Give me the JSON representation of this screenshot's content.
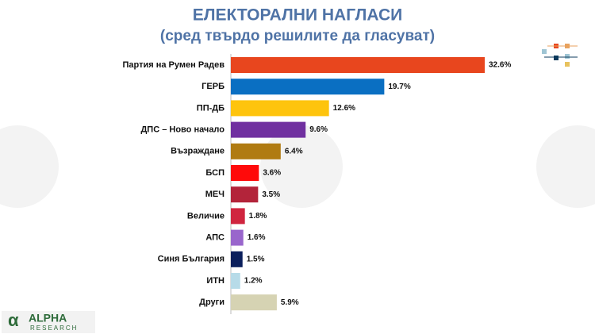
{
  "chart_data": {
    "type": "bar",
    "orientation": "horizontal",
    "title": "ЕЛЕКТОРАЛНИ НАГЛАСИ",
    "subtitle": "(сред твърдо решилите да гласуват)",
    "categories": [
      "Партия на Румен Радев",
      "ГЕРБ",
      "ПП-ДБ",
      "ДПС – Ново начало",
      "Възраждане",
      "БСП",
      "МЕЧ",
      "Величие",
      "АПС",
      "Синя България",
      "ИТН",
      "Други"
    ],
    "values": [
      32.6,
      19.7,
      12.6,
      9.6,
      6.4,
      3.6,
      3.5,
      1.8,
      1.6,
      1.5,
      1.2,
      5.9
    ],
    "value_labels": [
      "32.6%",
      "19.7%",
      "12.6%",
      "9.6%",
      "6.4%",
      "3.6%",
      "3.5%",
      "1.8%",
      "1.6%",
      "1.5%",
      "1.2%",
      "5.9%"
    ],
    "colors": [
      "#e8461e",
      "#0a6fc2",
      "#fec40d",
      "#7030a0",
      "#b07b12",
      "#ff0a0a",
      "#b3243a",
      "#d0253f",
      "#9966cc",
      "#0b1f5c",
      "#b7dbe8",
      "#d6d3b3"
    ]
  },
  "branding": {
    "name": "ALPHA",
    "sub": "RESEARCH"
  }
}
